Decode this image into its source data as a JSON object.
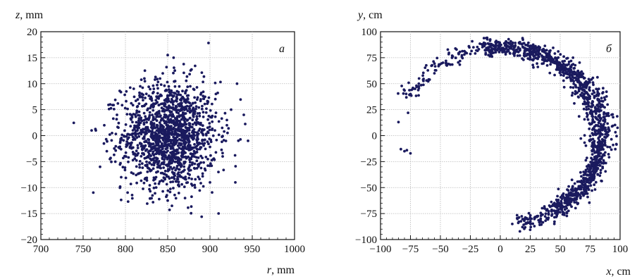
{
  "chart_data": [
    {
      "type": "scatter",
      "panel_label": "а",
      "xlabel_var": "r",
      "xlabel_unit": ", mm",
      "ylabel_var": "z",
      "ylabel_unit": ", mm",
      "xlim": [
        700,
        1000
      ],
      "ylim": [
        -20,
        20
      ],
      "xticks": [
        700,
        750,
        800,
        850,
        900,
        950,
        1000
      ],
      "yticks": [
        -20,
        -15,
        -10,
        -5,
        0,
        5,
        10,
        15,
        20
      ],
      "grid": true,
      "marker_color": "#1a1a5e",
      "distribution": {
        "center_x": 852,
        "center_y": 0,
        "sigma_x": 28,
        "sigma_y": 5.2,
        "count": 1500
      },
      "points": [
        [
          760,
          1
        ],
        [
          765,
          1
        ],
        [
          770,
          -6
        ],
        [
          775,
          2
        ],
        [
          778,
          -3
        ],
        [
          782,
          6
        ],
        [
          790,
          4
        ],
        [
          795,
          -8
        ],
        [
          940,
          4
        ],
        [
          945,
          -1
        ],
        [
          932,
          10
        ],
        [
          930,
          -9
        ],
        [
          920,
          3
        ],
        [
          910,
          -7
        ],
        [
          850,
          15.5
        ],
        [
          857,
          15
        ],
        [
          855,
          -13.5
        ],
        [
          850,
          -12.5
        ],
        [
          920,
          2
        ],
        [
          915,
          -4
        ],
        [
          925,
          5
        ],
        [
          900,
          -9
        ]
      ]
    },
    {
      "type": "scatter",
      "panel_label": "б",
      "xlabel_var": "x",
      "xlabel_unit": ", cm",
      "ylabel_var": "y",
      "ylabel_unit": ", cm",
      "xlim": [
        -100,
        100
      ],
      "ylim": [
        -100,
        100
      ],
      "xticks": [
        -100,
        -75,
        -50,
        -25,
        0,
        25,
        50,
        75,
        100
      ],
      "yticks": [
        -100,
        -75,
        -50,
        -25,
        0,
        25,
        50,
        75,
        100
      ],
      "grid": true,
      "marker_color": "#1a1a5e",
      "arc": {
        "center_x": 0,
        "center_y": 0,
        "radius_mean": 85,
        "radius_spread": 6,
        "angle_start_deg": 155,
        "angle_end_deg": -80,
        "count": 1800
      },
      "points": [
        [
          -85,
          13
        ],
        [
          -83,
          -13
        ],
        [
          -80,
          -15
        ],
        [
          -75,
          -17
        ],
        [
          -78,
          -14
        ],
        [
          -77,
          22
        ],
        [
          -75,
          40
        ],
        [
          -73,
          45
        ],
        [
          -70,
          48
        ],
        [
          -68,
          50
        ],
        [
          -55,
          60
        ],
        [
          -45,
          68
        ],
        [
          -30,
          78
        ],
        [
          -20,
          82
        ],
        [
          -10,
          85
        ],
        [
          0,
          87
        ],
        [
          5,
          90
        ],
        [
          10,
          88
        ],
        [
          15,
          85
        ],
        [
          10,
          -85
        ],
        [
          15,
          -84
        ],
        [
          20,
          -82
        ],
        [
          25,
          -80
        ],
        [
          30,
          -78
        ]
      ]
    }
  ]
}
